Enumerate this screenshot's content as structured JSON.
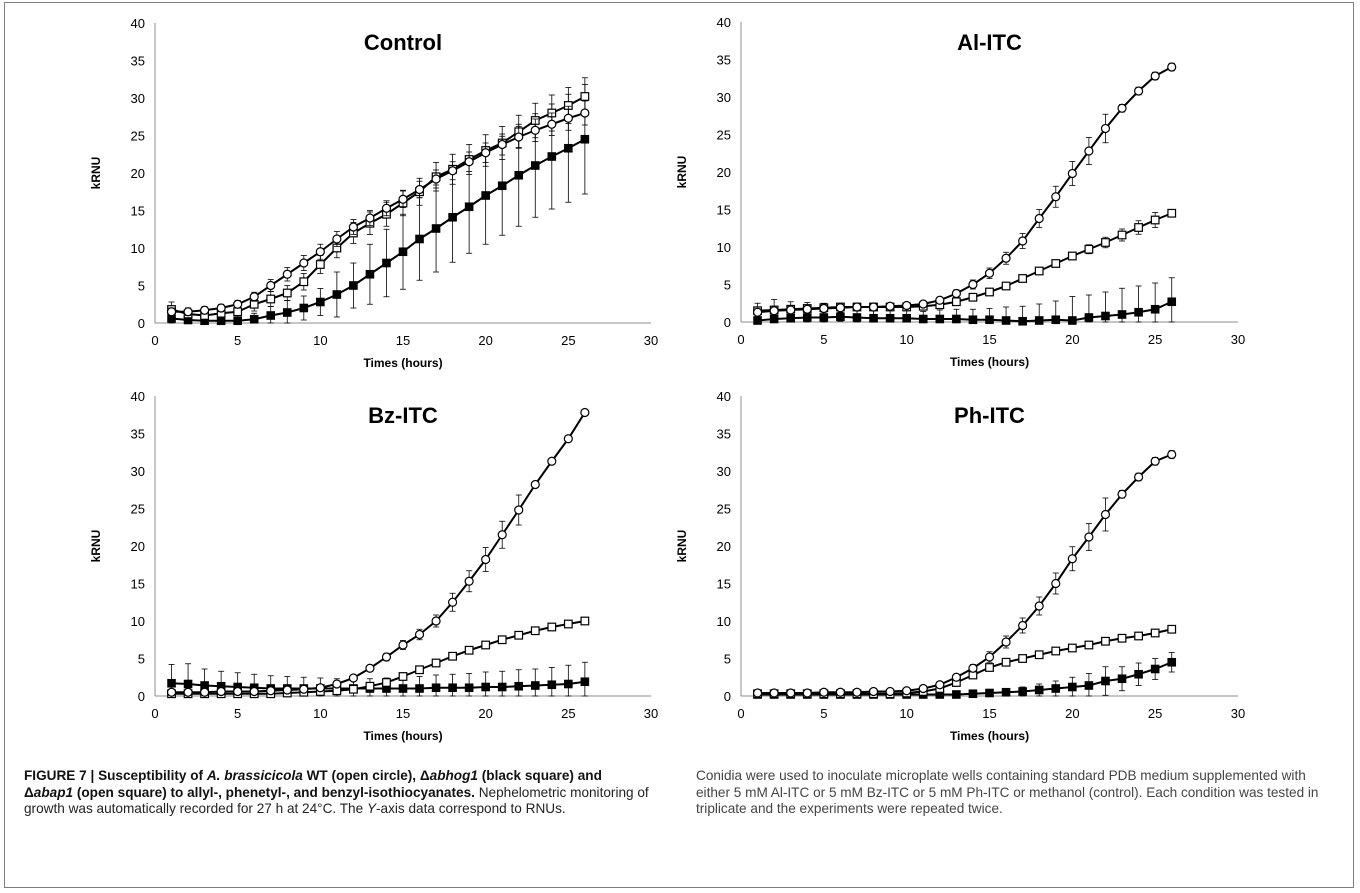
{
  "chart_data": [
    {
      "type": "line",
      "title": "Control",
      "xlabel": "Times (hours)",
      "ylabel": "kRNU",
      "xlim": [
        0,
        30
      ],
      "ylim": [
        0,
        40
      ],
      "xticks": [
        0,
        5,
        10,
        15,
        20,
        25,
        30
      ],
      "yticks": [
        0,
        5,
        10,
        15,
        20,
        25,
        30,
        35,
        40
      ],
      "x": [
        1,
        2,
        3,
        4,
        5,
        6,
        7,
        8,
        9,
        10,
        11,
        12,
        13,
        14,
        15,
        16,
        17,
        18,
        19,
        20,
        21,
        22,
        23,
        24,
        25,
        26
      ],
      "series": [
        {
          "marker": "open-circle",
          "values": [
            1.5,
            1.5,
            1.7,
            2.0,
            2.5,
            3.5,
            5.0,
            6.5,
            8.0,
            9.5,
            11.2,
            12.8,
            14.0,
            15.3,
            16.5,
            17.8,
            19.2,
            20.3,
            21.5,
            22.7,
            23.8,
            24.8,
            25.7,
            26.5,
            27.3,
            28.0
          ],
          "err": [
            0.5,
            0.5,
            0.5,
            0.5,
            0.5,
            0.6,
            0.8,
            0.9,
            1.0,
            1.0,
            1.0,
            1.0,
            1.0,
            1.0,
            1.1,
            1.1,
            1.2,
            1.2,
            1.3,
            1.3,
            1.4,
            1.4,
            1.5,
            1.5,
            1.6,
            1.6
          ]
        },
        {
          "marker": "open-square",
          "values": [
            1.8,
            1.2,
            1.0,
            1.3,
            1.5,
            2.5,
            3.2,
            4.0,
            5.5,
            7.8,
            10.0,
            12.0,
            13.3,
            14.5,
            16.0,
            17.5,
            19.5,
            20.5,
            21.8,
            23.0,
            24.0,
            25.5,
            27.0,
            28.0,
            29.0,
            30.2
          ],
          "err": [
            1.0,
            0.8,
            0.7,
            0.7,
            0.8,
            0.9,
            1.0,
            1.0,
            1.1,
            1.2,
            1.3,
            1.4,
            1.5,
            1.6,
            1.7,
            1.8,
            1.9,
            2.0,
            2.0,
            2.1,
            2.2,
            2.2,
            2.3,
            2.4,
            2.4,
            2.5
          ]
        },
        {
          "marker": "filled-square",
          "values": [
            0.6,
            0.4,
            0.3,
            0.3,
            0.3,
            0.5,
            1.0,
            1.4,
            2.0,
            2.8,
            3.8,
            5.0,
            6.5,
            8.0,
            9.5,
            11.2,
            12.6,
            14.1,
            15.5,
            17.0,
            18.3,
            19.7,
            21.0,
            22.2,
            23.3,
            24.5
          ],
          "err": [
            0.8,
            0.6,
            0.5,
            0.5,
            0.5,
            0.8,
            1.2,
            1.6,
            1.6,
            1.8,
            3.0,
            3.0,
            4.0,
            4.5,
            5.0,
            5.5,
            5.8,
            6.0,
            6.2,
            6.5,
            6.6,
            6.8,
            6.9,
            7.0,
            7.2,
            7.3
          ]
        }
      ]
    },
    {
      "type": "line",
      "title": "Al-ITC",
      "xlabel": "Times (hours)",
      "ylabel": "kRNU",
      "xlim": [
        0,
        30
      ],
      "ylim": [
        0,
        40
      ],
      "xticks": [
        0,
        5,
        10,
        15,
        20,
        25,
        30
      ],
      "yticks": [
        0,
        5,
        10,
        15,
        20,
        25,
        30,
        35,
        40
      ],
      "x": [
        1,
        2,
        3,
        4,
        5,
        6,
        7,
        8,
        9,
        10,
        11,
        12,
        13,
        14,
        15,
        16,
        17,
        18,
        19,
        20,
        21,
        22,
        23,
        24,
        25,
        26
      ],
      "series": [
        {
          "marker": "open-circle",
          "values": [
            1.3,
            1.5,
            1.6,
            1.7,
            1.8,
            1.9,
            2.0,
            2.0,
            2.1,
            2.2,
            2.4,
            2.9,
            3.8,
            5.0,
            6.5,
            8.5,
            10.8,
            13.8,
            16.7,
            19.8,
            22.8,
            25.8,
            28.5,
            30.8,
            32.8,
            34.0
          ],
          "err": [
            0.3,
            0.3,
            0.3,
            0.3,
            0.3,
            0.3,
            0.3,
            0.3,
            0.3,
            0.3,
            0.3,
            0.4,
            0.5,
            0.6,
            0.7,
            0.8,
            1.0,
            1.2,
            1.4,
            1.6,
            1.8,
            1.9,
            0.5,
            0.5,
            0.5,
            0.5
          ]
        },
        {
          "marker": "open-square",
          "values": [
            1.5,
            1.6,
            1.7,
            1.8,
            1.9,
            2.0,
            2.0,
            2.0,
            2.0,
            2.0,
            2.1,
            2.3,
            2.7,
            3.3,
            4.0,
            4.8,
            5.8,
            6.8,
            7.8,
            8.8,
            9.7,
            10.6,
            11.6,
            12.6,
            13.6,
            14.5
          ],
          "err": [
            1.0,
            1.4,
            1.0,
            0.8,
            0.6,
            0.4,
            0.3,
            0.3,
            0.3,
            0.3,
            0.3,
            0.3,
            0.3,
            0.3,
            0.3,
            0.3,
            0.3,
            0.3,
            0.4,
            0.5,
            0.6,
            0.7,
            0.8,
            0.9,
            1.0,
            0.3
          ]
        },
        {
          "marker": "filled-square",
          "values": [
            0.2,
            0.4,
            0.5,
            0.6,
            0.6,
            0.7,
            0.6,
            0.5,
            0.5,
            0.5,
            0.4,
            0.4,
            0.4,
            0.3,
            0.3,
            0.2,
            0.1,
            0.2,
            0.3,
            0.2,
            0.6,
            0.8,
            1.0,
            1.3,
            1.7,
            2.7
          ],
          "err": [
            1.2,
            1.4,
            1.2,
            1.0,
            0.8,
            0.6,
            1.0,
            1.5,
            1.5,
            1.5,
            1.0,
            1.2,
            1.3,
            1.4,
            1.5,
            1.8,
            2.0,
            2.2,
            2.5,
            3.2,
            3.0,
            3.2,
            3.5,
            3.5,
            3.5,
            3.2
          ]
        }
      ]
    },
    {
      "type": "line",
      "title": "Bz-ITC",
      "xlabel": "Times (hours)",
      "ylabel": "kRNU",
      "xlim": [
        0,
        30
      ],
      "ylim": [
        0,
        40
      ],
      "xticks": [
        0,
        5,
        10,
        15,
        20,
        25,
        30
      ],
      "yticks": [
        0,
        5,
        10,
        15,
        20,
        25,
        30,
        35,
        40
      ],
      "x": [
        1,
        2,
        3,
        4,
        5,
        6,
        7,
        8,
        9,
        10,
        11,
        12,
        13,
        14,
        15,
        16,
        17,
        18,
        19,
        20,
        21,
        22,
        23,
        24,
        25,
        26
      ],
      "series": [
        {
          "marker": "open-circle",
          "values": [
            0.5,
            0.5,
            0.5,
            0.6,
            0.6,
            0.6,
            0.7,
            0.8,
            0.9,
            1.1,
            1.6,
            2.4,
            3.7,
            5.2,
            6.8,
            8.2,
            10.0,
            12.5,
            15.3,
            18.2,
            21.5,
            24.8,
            28.2,
            31.3,
            34.3,
            37.8
          ],
          "err": [
            0.3,
            0.3,
            0.3,
            0.3,
            0.3,
            0.3,
            0.3,
            0.3,
            0.3,
            0.3,
            0.3,
            0.3,
            0.3,
            0.5,
            0.6,
            0.7,
            0.8,
            1.2,
            1.4,
            1.6,
            1.8,
            2.0,
            0.4,
            0.4,
            0.4,
            0.4
          ]
        },
        {
          "marker": "open-square",
          "values": [
            0.3,
            0.3,
            0.3,
            0.3,
            0.3,
            0.3,
            0.3,
            0.4,
            0.5,
            0.6,
            0.7,
            0.9,
            1.3,
            1.8,
            2.6,
            3.5,
            4.4,
            5.3,
            6.1,
            6.8,
            7.5,
            8.1,
            8.7,
            9.2,
            9.6,
            10.0
          ],
          "err": [
            0.3,
            0.3,
            0.3,
            0.3,
            0.3,
            0.3,
            0.3,
            0.3,
            0.3,
            0.3,
            0.3,
            0.3,
            0.3,
            0.3,
            0.3,
            0.3,
            0.3,
            0.3,
            0.3,
            0.3,
            0.3,
            0.3,
            0.3,
            0.3,
            0.3,
            0.3
          ]
        },
        {
          "marker": "filled-square",
          "values": [
            1.7,
            1.6,
            1.4,
            1.3,
            1.2,
            1.1,
            1.0,
            1.0,
            1.0,
            1.0,
            1.0,
            1.0,
            1.0,
            1.0,
            1.0,
            1.0,
            1.1,
            1.1,
            1.1,
            1.2,
            1.2,
            1.3,
            1.4,
            1.5,
            1.6,
            1.9
          ],
          "err": [
            2.5,
            2.7,
            2.2,
            2.0,
            1.9,
            1.8,
            1.7,
            1.6,
            1.5,
            1.4,
            1.3,
            1.3,
            1.3,
            1.4,
            1.5,
            1.6,
            1.7,
            1.8,
            1.9,
            2.0,
            2.1,
            2.2,
            2.2,
            2.3,
            2.5,
            2.6
          ]
        }
      ]
    },
    {
      "type": "line",
      "title": "Ph-ITC",
      "xlabel": "Times (hours)",
      "ylabel": "kRNU",
      "xlim": [
        0,
        30
      ],
      "ylim": [
        0,
        40
      ],
      "xticks": [
        0,
        5,
        10,
        15,
        20,
        25,
        30
      ],
      "yticks": [
        0,
        5,
        10,
        15,
        20,
        25,
        30,
        35,
        40
      ],
      "x": [
        1,
        2,
        3,
        4,
        5,
        6,
        7,
        8,
        9,
        10,
        11,
        12,
        13,
        14,
        15,
        16,
        17,
        18,
        19,
        20,
        21,
        22,
        23,
        24,
        25,
        26
      ],
      "series": [
        {
          "marker": "open-circle",
          "values": [
            0.4,
            0.4,
            0.4,
            0.4,
            0.5,
            0.5,
            0.5,
            0.6,
            0.6,
            0.7,
            1.0,
            1.5,
            2.5,
            3.7,
            5.2,
            7.2,
            9.4,
            12.0,
            15.0,
            18.3,
            21.2,
            24.2,
            26.9,
            29.2,
            31.3,
            32.2
          ],
          "err": [
            0.2,
            0.2,
            0.2,
            0.2,
            0.2,
            0.2,
            0.2,
            0.2,
            0.2,
            0.2,
            0.2,
            0.3,
            0.4,
            0.5,
            0.7,
            0.8,
            1.0,
            1.2,
            1.4,
            1.6,
            1.8,
            2.2,
            0.5,
            0.5,
            0.5,
            0.5
          ]
        },
        {
          "marker": "open-square",
          "values": [
            0.3,
            0.3,
            0.3,
            0.3,
            0.3,
            0.3,
            0.3,
            0.3,
            0.3,
            0.4,
            0.6,
            1.0,
            1.8,
            2.8,
            3.8,
            4.5,
            5.0,
            5.5,
            6.0,
            6.4,
            6.8,
            7.3,
            7.7,
            8.0,
            8.4,
            8.9
          ],
          "err": [
            0.2,
            0.2,
            0.2,
            0.2,
            0.2,
            0.2,
            0.2,
            0.2,
            0.2,
            0.2,
            0.2,
            0.3,
            0.3,
            0.3,
            0.3,
            0.3,
            0.3,
            0.3,
            0.3,
            0.3,
            0.3,
            0.3,
            0.3,
            0.3,
            0.3,
            0.4
          ]
        },
        {
          "marker": "filled-square",
          "values": [
            0.2,
            0.2,
            0.2,
            0.2,
            0.2,
            0.2,
            0.2,
            0.2,
            0.2,
            0.2,
            0.2,
            0.2,
            0.2,
            0.3,
            0.4,
            0.5,
            0.6,
            0.8,
            1.0,
            1.2,
            1.4,
            2.0,
            2.3,
            2.9,
            3.6,
            4.5
          ],
          "err": [
            0.2,
            0.2,
            0.2,
            0.2,
            0.2,
            0.2,
            0.2,
            0.2,
            0.2,
            0.2,
            0.2,
            0.2,
            0.2,
            0.3,
            0.4,
            0.5,
            0.6,
            0.8,
            1.0,
            1.3,
            1.6,
            1.9,
            1.6,
            1.5,
            1.4,
            1.3
          ]
        }
      ]
    }
  ],
  "caption": {
    "fig_label": "FIGURE 7 | ",
    "bold_p1": "Susceptibility of ",
    "bold_italic_species": "A. brassicicola",
    "bold_p2": " WT (open circle), Δ",
    "bold_italic_gene1": "abhog1",
    "bold_p3": " (black square) and Δ",
    "bold_italic_gene2": "abap1",
    "bold_p4": " (open square) to allyl-, phenetyl-, and benzyl-isothiocyanates.",
    "plain_p1": " Nephelometric monitoring of growth was automatically recorded for 27 h at 24°C. The ",
    "italic_y": "Y",
    "plain_p2": "-axis data correspond to RNUs.",
    "right_text": "Conidia were used to inoculate microplate wells containing standard PDB medium supplemented with either 5 mM Al-ITC or 5 mM Bz-ITC or 5 mM Ph-ITC or methanol (control). Each condition was tested in triplicate and the experiments were repeated twice."
  }
}
